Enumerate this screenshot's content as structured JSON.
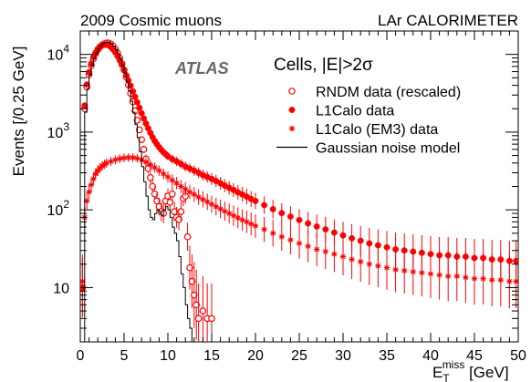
{
  "chart_data": {
    "type": "scatter",
    "title_left": "2009 Cosmic muons",
    "title_right": "LAr CALORIMETER",
    "atlas_label": "ATLAS",
    "selection_label": "Cells, |E|>2σ",
    "ylabel": "Events [/0.25 GeV]",
    "xlabel": {
      "main": "E",
      "sub": "T",
      "sup": "miss",
      "unit": " [GeV]"
    },
    "xlim": [
      0,
      50
    ],
    "ylim": [
      2,
      20000
    ],
    "yscale": "log",
    "x_ticks": [
      0,
      5,
      10,
      15,
      20,
      25,
      30,
      35,
      40,
      45,
      50
    ],
    "y_ticks": [
      {
        "value": 10,
        "base": "10",
        "exp": ""
      },
      {
        "value": 100,
        "base": "10",
        "exp": "2"
      },
      {
        "value": 1000,
        "base": "10",
        "exp": "3"
      },
      {
        "value": 10000,
        "base": "10",
        "exp": "4"
      }
    ],
    "colors": {
      "data": "#ff0000",
      "model": "#000000",
      "atlas": "#666666"
    },
    "legend_position": "top-right",
    "series": [
      {
        "name": "RNDM data (rescaled)",
        "marker": "open-circle",
        "points": [
          [
            0.25,
            10
          ],
          [
            0.5,
            2000
          ],
          [
            0.75,
            3800
          ],
          [
            1.0,
            5500
          ],
          [
            1.25,
            7200
          ],
          [
            1.5,
            8800
          ],
          [
            1.75,
            10200
          ],
          [
            2.0,
            11500
          ],
          [
            2.25,
            12500
          ],
          [
            2.5,
            13200
          ],
          [
            2.75,
            13700
          ],
          [
            3.0,
            14000
          ],
          [
            3.25,
            14000
          ],
          [
            3.5,
            13600
          ],
          [
            3.75,
            12800
          ],
          [
            4.0,
            11700
          ],
          [
            4.25,
            10400
          ],
          [
            4.5,
            9000
          ],
          [
            4.75,
            7600
          ],
          [
            5.0,
            6300
          ],
          [
            5.25,
            5100
          ],
          [
            5.5,
            4050
          ],
          [
            5.75,
            3150
          ],
          [
            6.0,
            2450
          ],
          [
            6.25,
            1880
          ],
          [
            6.5,
            1420
          ],
          [
            6.75,
            1070
          ],
          [
            7.0,
            800
          ],
          [
            7.25,
            600
          ],
          [
            7.5,
            450
          ],
          [
            7.75,
            340
          ],
          [
            8.0,
            260
          ],
          [
            8.25,
            200
          ],
          [
            8.5,
            160
          ],
          [
            8.75,
            130
          ],
          [
            9.0,
            110
          ],
          [
            9.25,
            95
          ],
          [
            9.5,
            90
          ],
          [
            9.75,
            130
          ],
          [
            10.0,
            150
          ],
          [
            10.25,
            125
          ],
          [
            10.5,
            160
          ],
          [
            10.75,
            95
          ],
          [
            11.0,
            80
          ],
          [
            11.25,
            75
          ],
          [
            11.5,
            95
          ],
          [
            11.75,
            140
          ],
          [
            12.0,
            150
          ],
          [
            12.25,
            45
          ],
          [
            12.5,
            18
          ],
          [
            12.75,
            12
          ],
          [
            13.0,
            8
          ],
          [
            13.25,
            6
          ],
          [
            13.5,
            4
          ],
          [
            14.0,
            5
          ],
          [
            14.5,
            4
          ],
          [
            15.0,
            4
          ]
        ]
      },
      {
        "name": "L1Calo data",
        "marker": "filled-circle",
        "points": [
          [
            0.25,
            10
          ],
          [
            0.5,
            2200
          ],
          [
            0.75,
            4100
          ],
          [
            1.0,
            5900
          ],
          [
            1.25,
            7600
          ],
          [
            1.5,
            9200
          ],
          [
            1.75,
            10500
          ],
          [
            2.0,
            11700
          ],
          [
            2.25,
            12600
          ],
          [
            2.5,
            13100
          ],
          [
            2.75,
            13300
          ],
          [
            3.0,
            13300
          ],
          [
            3.25,
            13000
          ],
          [
            3.5,
            12400
          ],
          [
            3.75,
            11600
          ],
          [
            4.0,
            10600
          ],
          [
            4.25,
            9500
          ],
          [
            4.5,
            8400
          ],
          [
            4.75,
            7300
          ],
          [
            5.0,
            6300
          ],
          [
            5.25,
            5400
          ],
          [
            5.5,
            4600
          ],
          [
            5.75,
            3950
          ],
          [
            6.0,
            3350
          ],
          [
            6.25,
            2850
          ],
          [
            6.5,
            2420
          ],
          [
            6.75,
            2060
          ],
          [
            7.0,
            1750
          ],
          [
            7.25,
            1500
          ],
          [
            7.5,
            1290
          ],
          [
            7.75,
            1120
          ],
          [
            8.0,
            980
          ],
          [
            8.25,
            860
          ],
          [
            8.5,
            770
          ],
          [
            8.75,
            700
          ],
          [
            9.0,
            640
          ],
          [
            9.25,
            590
          ],
          [
            9.5,
            550
          ],
          [
            9.75,
            520
          ],
          [
            10.0,
            490
          ],
          [
            10.5,
            450
          ],
          [
            11.0,
            420
          ],
          [
            11.5,
            390
          ],
          [
            12.0,
            360
          ],
          [
            12.5,
            340
          ],
          [
            13.0,
            320
          ],
          [
            13.5,
            300
          ],
          [
            14.0,
            280
          ],
          [
            14.5,
            265
          ],
          [
            15.0,
            250
          ],
          [
            15.5,
            235
          ],
          [
            16.0,
            220
          ],
          [
            16.5,
            205
          ],
          [
            17.0,
            192
          ],
          [
            17.5,
            180
          ],
          [
            18.0,
            168
          ],
          [
            18.5,
            158
          ],
          [
            19.0,
            148
          ],
          [
            19.5,
            138
          ],
          [
            20.0,
            130
          ],
          [
            21.0,
            115
          ],
          [
            22.0,
            102
          ],
          [
            23.0,
            91
          ],
          [
            24.0,
            82
          ],
          [
            25.0,
            74
          ],
          [
            26.0,
            67
          ],
          [
            27.0,
            61
          ],
          [
            28.0,
            56
          ],
          [
            29.0,
            51
          ],
          [
            30.0,
            47
          ],
          [
            31.0,
            43
          ],
          [
            32.0,
            40
          ],
          [
            33.0,
            37
          ],
          [
            34.0,
            35
          ],
          [
            35.0,
            33
          ],
          [
            36.0,
            31
          ],
          [
            37.0,
            30
          ],
          [
            38.0,
            29
          ],
          [
            39.0,
            28
          ],
          [
            40.0,
            27
          ],
          [
            41.0,
            26
          ],
          [
            42.0,
            26
          ],
          [
            43.0,
            25
          ],
          [
            44.0,
            25
          ],
          [
            45.0,
            24
          ],
          [
            46.0,
            24
          ],
          [
            47.0,
            23
          ],
          [
            48.0,
            23
          ],
          [
            49.0,
            22
          ],
          [
            49.75,
            22
          ]
        ]
      },
      {
        "name": "L1Calo (EM3) data",
        "marker": "star",
        "points": [
          [
            0.25,
            12
          ],
          [
            0.5,
            80
          ],
          [
            0.75,
            130
          ],
          [
            1.0,
            170
          ],
          [
            1.25,
            210
          ],
          [
            1.5,
            250
          ],
          [
            1.75,
            290
          ],
          [
            2.0,
            320
          ],
          [
            2.25,
            345
          ],
          [
            2.5,
            365
          ],
          [
            2.75,
            385
          ],
          [
            3.0,
            400
          ],
          [
            3.5,
            420
          ],
          [
            4.0,
            440
          ],
          [
            4.5,
            455
          ],
          [
            5.0,
            465
          ],
          [
            5.5,
            470
          ],
          [
            6.0,
            470
          ],
          [
            6.5,
            460
          ],
          [
            7.0,
            440
          ],
          [
            7.5,
            410
          ],
          [
            8.0,
            380
          ],
          [
            8.5,
            350
          ],
          [
            9.0,
            320
          ],
          [
            9.5,
            290
          ],
          [
            10.0,
            265
          ],
          [
            10.5,
            240
          ],
          [
            11.0,
            220
          ],
          [
            11.5,
            200
          ],
          [
            12.0,
            185
          ],
          [
            12.5,
            170
          ],
          [
            13.0,
            158
          ],
          [
            13.5,
            146
          ],
          [
            14.0,
            136
          ],
          [
            14.5,
            127
          ],
          [
            15.0,
            118
          ],
          [
            15.5,
            110
          ],
          [
            16.0,
            103
          ],
          [
            16.5,
            96
          ],
          [
            17.0,
            90
          ],
          [
            17.5,
            84
          ],
          [
            18.0,
            79
          ],
          [
            18.5,
            74
          ],
          [
            19.0,
            70
          ],
          [
            19.5,
            66
          ],
          [
            20.0,
            62
          ],
          [
            21.0,
            56
          ],
          [
            22.0,
            50
          ],
          [
            23.0,
            45
          ],
          [
            24.0,
            41
          ],
          [
            25.0,
            37
          ],
          [
            26.0,
            34
          ],
          [
            27.0,
            31
          ],
          [
            28.0,
            29
          ],
          [
            29.0,
            27
          ],
          [
            30.0,
            25
          ],
          [
            31.0,
            23
          ],
          [
            32.0,
            21.5
          ],
          [
            33.0,
            20
          ],
          [
            34.0,
            19
          ],
          [
            35.0,
            18
          ],
          [
            36.0,
            17
          ],
          [
            37.0,
            16.5
          ],
          [
            38.0,
            16
          ],
          [
            39.0,
            15.5
          ],
          [
            40.0,
            15
          ],
          [
            41.0,
            14.5
          ],
          [
            42.0,
            14
          ],
          [
            43.0,
            14
          ],
          [
            44.0,
            13.5
          ],
          [
            45.0,
            13
          ],
          [
            46.0,
            13
          ],
          [
            47.0,
            12.5
          ],
          [
            48.0,
            12.5
          ],
          [
            49.0,
            12
          ],
          [
            49.75,
            12
          ]
        ]
      },
      {
        "name": "Gaussian noise model",
        "marker": "line",
        "points": [
          [
            0.0,
            2
          ],
          [
            0.25,
            2
          ],
          [
            0.5,
            1800
          ],
          [
            0.75,
            3600
          ],
          [
            1.0,
            5400
          ],
          [
            1.25,
            7200
          ],
          [
            1.5,
            8900
          ],
          [
            1.75,
            10400
          ],
          [
            2.0,
            11800
          ],
          [
            2.25,
            12900
          ],
          [
            2.5,
            13700
          ],
          [
            2.75,
            14200
          ],
          [
            3.0,
            14400
          ],
          [
            3.25,
            14200
          ],
          [
            3.5,
            13700
          ],
          [
            3.75,
            12800
          ],
          [
            4.0,
            11600
          ],
          [
            4.25,
            10200
          ],
          [
            4.5,
            8700
          ],
          [
            4.75,
            7200
          ],
          [
            5.0,
            5800
          ],
          [
            5.25,
            4500
          ],
          [
            5.5,
            3400
          ],
          [
            5.75,
            2500
          ],
          [
            6.0,
            1800
          ],
          [
            6.25,
            1250
          ],
          [
            6.5,
            850
          ],
          [
            6.75,
            560
          ],
          [
            7.0,
            360
          ],
          [
            7.25,
            230
          ],
          [
            7.5,
            150
          ],
          [
            7.75,
            100
          ],
          [
            8.0,
            80
          ],
          [
            8.25,
            75
          ],
          [
            8.5,
            90
          ],
          [
            8.75,
            100
          ],
          [
            9.0,
            95
          ],
          [
            9.25,
            85
          ],
          [
            9.5,
            100
          ],
          [
            9.75,
            110
          ],
          [
            10.0,
            100
          ],
          [
            10.25,
            80
          ],
          [
            10.5,
            60
          ],
          [
            10.75,
            50
          ],
          [
            11.0,
            40
          ],
          [
            11.25,
            25
          ],
          [
            11.5,
            15
          ],
          [
            11.75,
            10
          ],
          [
            12.0,
            6
          ],
          [
            12.25,
            4
          ],
          [
            12.5,
            3
          ],
          [
            12.75,
            2
          ],
          [
            13.0,
            2
          ]
        ]
      }
    ]
  }
}
